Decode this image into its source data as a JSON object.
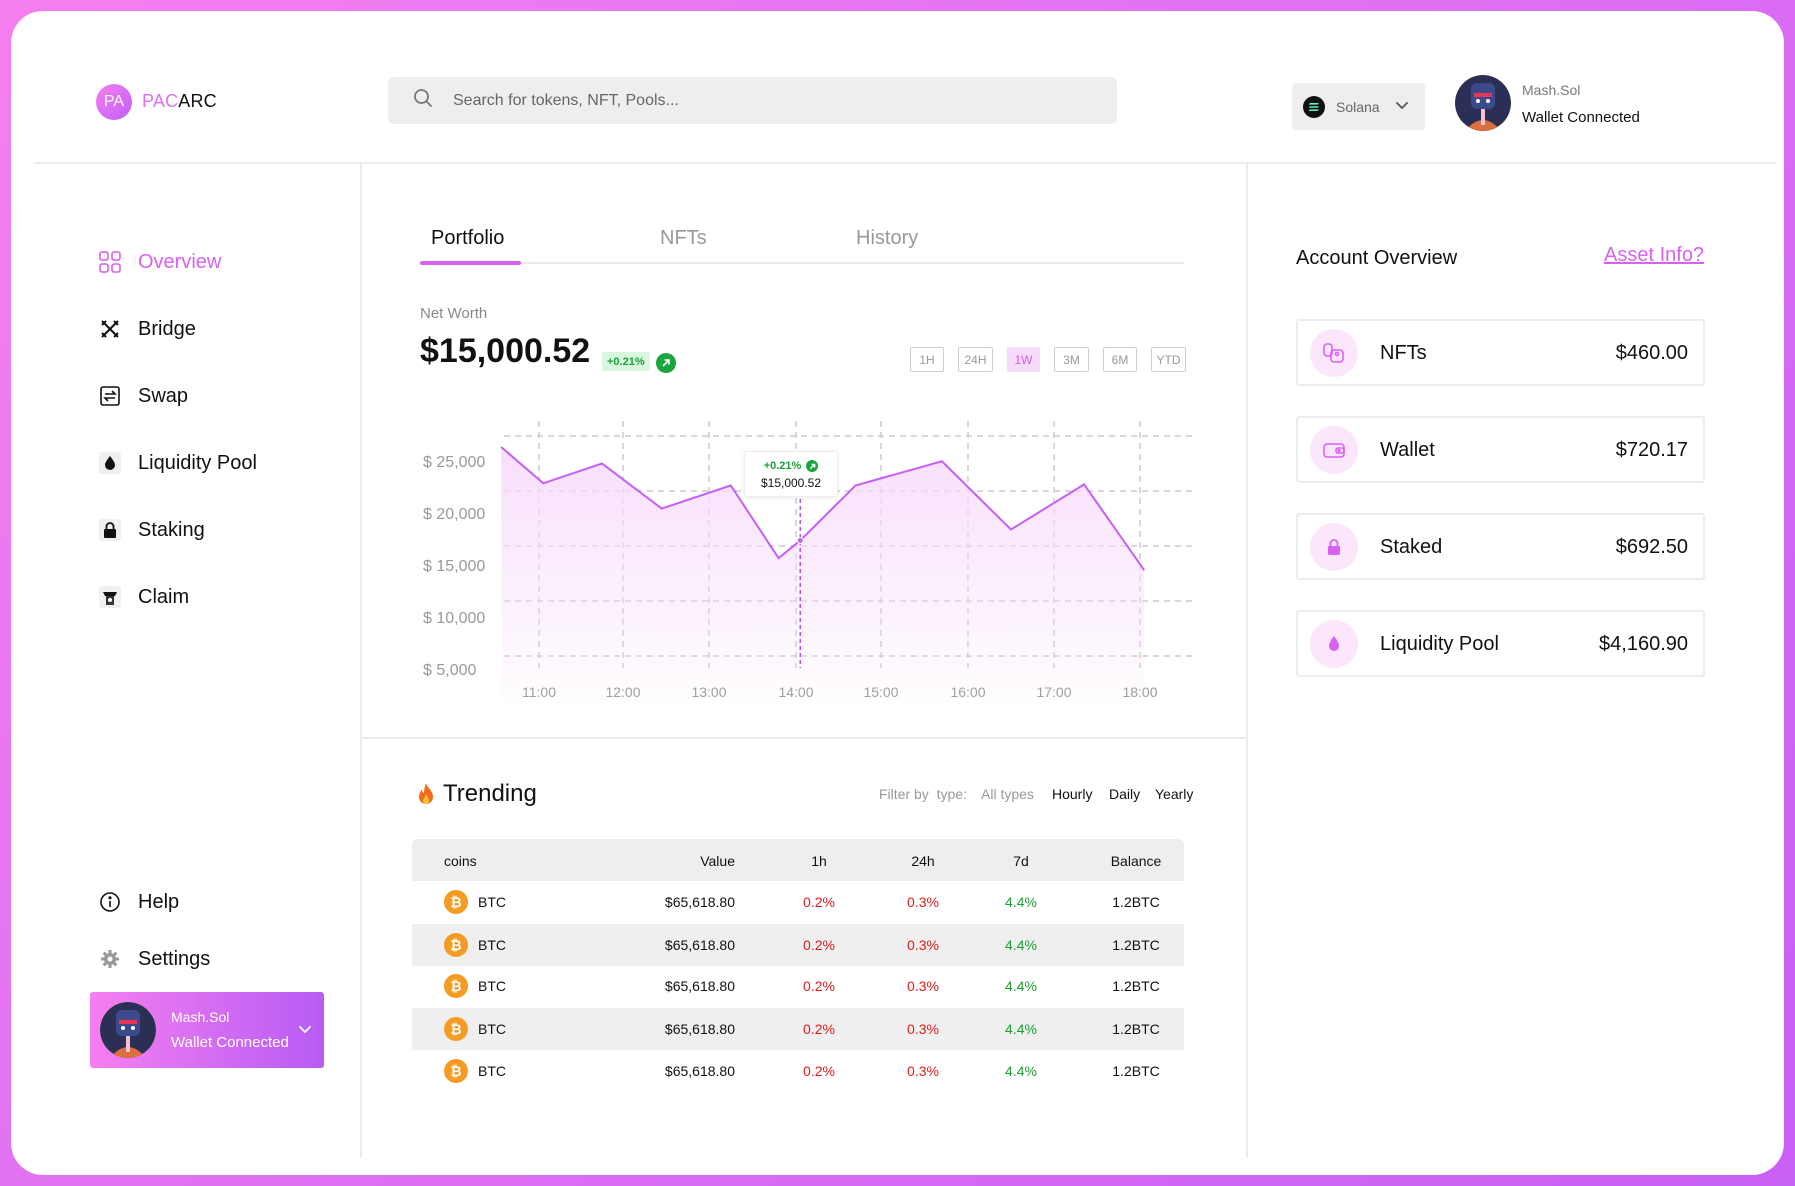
{
  "brand": {
    "badge": "PA",
    "name_part1": "PAC",
    "name_part2": "ARC"
  },
  "search": {
    "placeholder": "Search for tokens, NFT, Pools..."
  },
  "network": {
    "label": "Solana"
  },
  "user": {
    "name": "Mash.Sol",
    "status": "Wallet Connected"
  },
  "sidebar": {
    "items": [
      {
        "label": "Overview",
        "icon": "grid-icon"
      },
      {
        "label": "Bridge",
        "icon": "bridge-icon"
      },
      {
        "label": "Swap",
        "icon": "swap-icon"
      },
      {
        "label": "Liquidity Pool",
        "icon": "droplet-icon"
      },
      {
        "label": "Staking",
        "icon": "lock-icon"
      },
      {
        "label": "Claim",
        "icon": "claim-icon"
      }
    ],
    "bottom": [
      {
        "label": "Help",
        "icon": "info-icon"
      },
      {
        "label": "Settings",
        "icon": "gear-icon"
      }
    ]
  },
  "tabs": [
    {
      "label": "Portfolio"
    },
    {
      "label": "NFTs"
    },
    {
      "label": "History"
    }
  ],
  "net_worth": {
    "label": "Net Worth",
    "value": "$15,000.52",
    "change": "+0.21%"
  },
  "ranges": [
    "1H",
    "24H",
    "1W",
    "3M",
    "6M",
    "YTD"
  ],
  "active_range": "1W",
  "chart_data": {
    "type": "area",
    "x": [
      "11:00",
      "12:00",
      "13:00",
      "14:00",
      "15:00",
      "16:00",
      "17:00",
      "18:00"
    ],
    "y_ticks": [
      "$ 25,000",
      "$ 20,000",
      "$ 15,000",
      "$ 10,000",
      "$ 5,000"
    ],
    "ylim": [
      5000,
      25000
    ],
    "series": [
      {
        "values": [
          {
            "x": 10.55,
            "y": 24000
          },
          {
            "x": 11.05,
            "y": 20700
          },
          {
            "x": 11.75,
            "y": 22500
          },
          {
            "x": 12.45,
            "y": 18400
          },
          {
            "x": 13.25,
            "y": 20500
          },
          {
            "x": 13.8,
            "y": 13900
          },
          {
            "x": 14.05,
            "y": 15500
          },
          {
            "x": 14.7,
            "y": 20500
          },
          {
            "x": 15.7,
            "y": 22700
          },
          {
            "x": 16.5,
            "y": 16500
          },
          {
            "x": 17.35,
            "y": 20600
          },
          {
            "x": 18.05,
            "y": 12800
          }
        ]
      }
    ],
    "tooltip": {
      "change": "+0.21%",
      "value": "$15,000.52"
    },
    "colors": {
      "line": "#c560f2",
      "fill": "#f7dbfb",
      "grid": "#cccccc"
    }
  },
  "trending": {
    "title": "Trending",
    "filter_label": "Filter by  type:",
    "filters": [
      "All types",
      "Hourly",
      "Daily",
      "Yearly"
    ],
    "columns": [
      "coins",
      "Value",
      "1h",
      "24h",
      "7d",
      "Balance"
    ],
    "rows": [
      {
        "coin": "BTC",
        "value": "$65,618.80",
        "h1": "0.2%",
        "h24": "0.3%",
        "d7": "4.4%",
        "balance": "1.2BTC"
      },
      {
        "coin": "BTC",
        "value": "$65,618.80",
        "h1": "0.2%",
        "h24": "0.3%",
        "d7": "4.4%",
        "balance": "1.2BTC"
      },
      {
        "coin": "BTC",
        "value": "$65,618.80",
        "h1": "0.2%",
        "h24": "0.3%",
        "d7": "4.4%",
        "balance": "1.2BTC"
      },
      {
        "coin": "BTC",
        "value": "$65,618.80",
        "h1": "0.2%",
        "h24": "0.3%",
        "d7": "4.4%",
        "balance": "1.2BTC"
      },
      {
        "coin": "BTC",
        "value": "$65,618.80",
        "h1": "0.2%",
        "h24": "0.3%",
        "d7": "4.4%",
        "balance": "1.2BTC"
      }
    ]
  },
  "account_overview": {
    "title": "Account Overview",
    "link": "Asset Info?",
    "cards": [
      {
        "label": "NFTs",
        "value": "$460.00",
        "icon": "nft-icon"
      },
      {
        "label": "Wallet",
        "value": "$720.17",
        "icon": "wallet-icon"
      },
      {
        "label": "Staked",
        "value": "$692.50",
        "icon": "lock-icon"
      },
      {
        "label": "Liquidity Pool",
        "value": "$4,160.90",
        "icon": "droplet-icon"
      }
    ]
  },
  "colors": {
    "accent": "#d961f2",
    "positive": "#1a9e2f",
    "negative": "#e21b1b",
    "btc": "#f49b24"
  }
}
